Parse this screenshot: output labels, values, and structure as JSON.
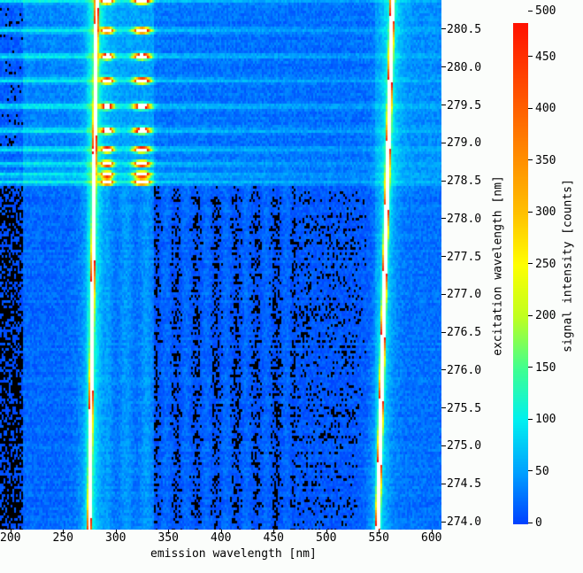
{
  "chart_data": {
    "type": "heatmap",
    "xlabel": "emission wavelength [nm]",
    "ylabel": "excitation wavelength [nm]",
    "colorbar_label": "signal intensity [counts]",
    "xlim": [
      190,
      608
    ],
    "ylim": [
      273.9,
      280.9
    ],
    "xticks": [
      "200",
      "250",
      "300",
      "350",
      "400",
      "450",
      "500",
      "550",
      "600"
    ],
    "yticks": [
      "274.0",
      "274.5",
      "275.0",
      "275.5",
      "276.0",
      "276.5",
      "277.0",
      "277.5",
      "278.0",
      "278.5",
      "279.0",
      "279.5",
      "280.0",
      "280.5"
    ],
    "colorbar_ticks": [
      "0",
      "50",
      "100",
      "150",
      "200",
      "250",
      "300",
      "350",
      "400",
      "450",
      "500"
    ],
    "colorbar_range": [
      0,
      500
    ],
    "colormap": [
      "#0040ff",
      "#00a0ff",
      "#00f0f0",
      "#40ff90",
      "#c0ff20",
      "#ffff00",
      "#ffc000",
      "#ff9000",
      "#ff6000",
      "#ff3000",
      "#ff0000"
    ],
    "over_color": "#ffffff",
    "under_color": "#000000",
    "features": {
      "first_order_scatter": "emission = excitation",
      "second_order_scatter": "emission = 2 x excitation",
      "band_excitation_nm": [
        278.5,
        278.6,
        278.74,
        278.93,
        279.18,
        279.5,
        279.84,
        280.16,
        280.5,
        280.89
      ],
      "band_emission_peaks_nm": [
        291,
        324
      ]
    }
  }
}
